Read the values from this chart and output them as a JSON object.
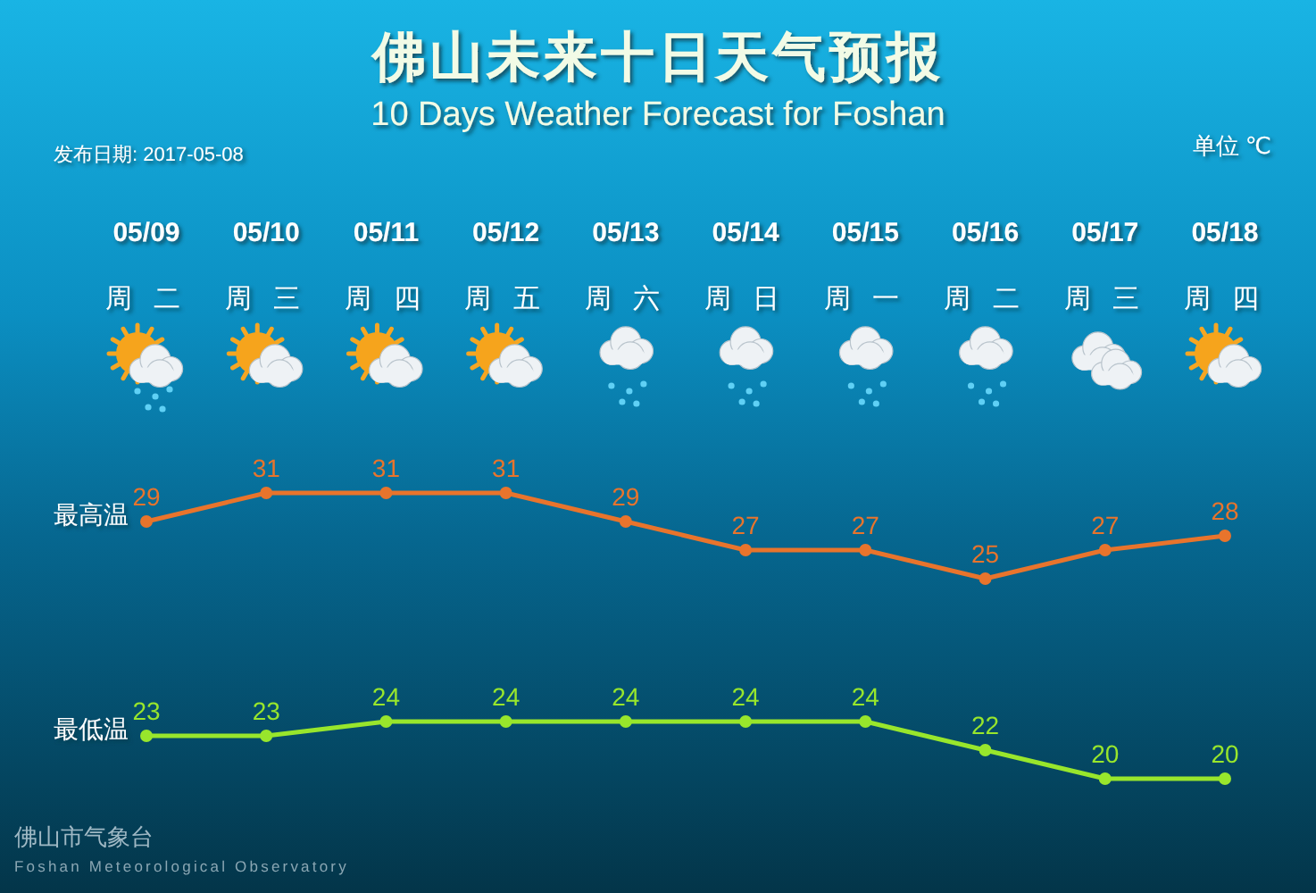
{
  "chart_data": [
    {
      "type": "line",
      "title": "佛山未来十日天气预报",
      "subtitle": "10 Days Weather Forecast for Foshan",
      "annotations": [
        "发布日期: 2017-05-08",
        "单位 ℃",
        "佛山市气象台",
        "Foshan Meteorological Observatory"
      ],
      "categories": [
        "05/09\n周 二",
        "05/10\n周 三",
        "05/11\n周 四",
        "05/12\n周 五",
        "05/13\n周 六",
        "05/14\n周 日",
        "05/15\n周 一",
        "05/16\n周 二",
        "05/17\n周 三",
        "05/18\n周 四"
      ],
      "series": [
        {
          "name": "最高温",
          "color": "#e8742c",
          "values": [
            29,
            31,
            31,
            31,
            29,
            27,
            27,
            25,
            27,
            28
          ]
        }
      ],
      "data_labels": true,
      "marker": "circle",
      "line_style": "solid"
    },
    {
      "type": "line",
      "categories": [
        null,
        null,
        null,
        null,
        null,
        null,
        null,
        null,
        null,
        null
      ],
      "series": [
        {
          "name": "最低温",
          "color": "#98e62c",
          "values": [
            23,
            23,
            24,
            24,
            24,
            24,
            24,
            22,
            20,
            20
          ]
        }
      ],
      "data_labels": true,
      "marker": "circle",
      "line_style": "solid"
    }
  ]
}
